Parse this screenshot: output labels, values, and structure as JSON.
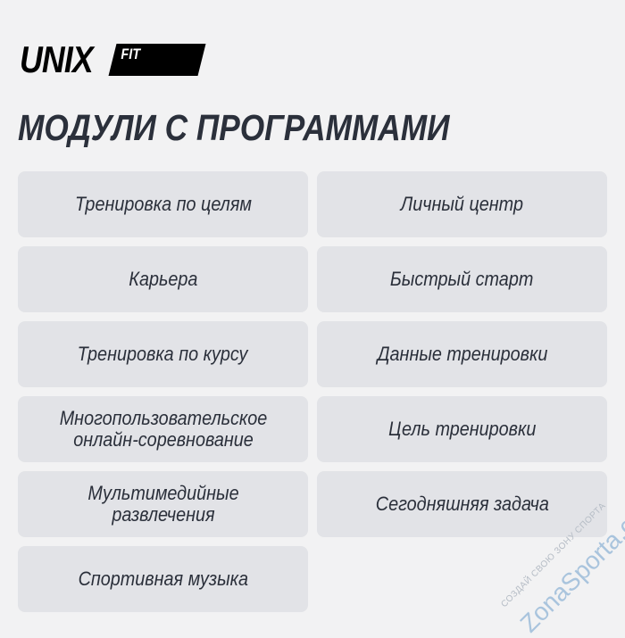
{
  "logo": {
    "brand": "UNIX",
    "suffix": "FIT"
  },
  "title": "МОДУЛИ С ПРОГРАММАМИ",
  "modules_left": [
    "Тренировка по целям",
    "Карьера",
    "Тренировка по курсу",
    "Многопользовательское онлайн-соревнование",
    "Мультимедийные развлечения",
    "Спортивная музыка"
  ],
  "modules_right": [
    "Личный центр",
    "Быстрый старт",
    "Данные тренировки",
    "Цель тренировки",
    "Сегодняшняя задача"
  ],
  "watermark": {
    "site": "ZonaSporta.com",
    "slogan": "СОЗДАЙ СВОЮ ЗОНУ СПОРТА"
  },
  "colors": {
    "background": "#f2f2f3",
    "card": "#e2e3e7",
    "text": "#2a2f3a"
  }
}
